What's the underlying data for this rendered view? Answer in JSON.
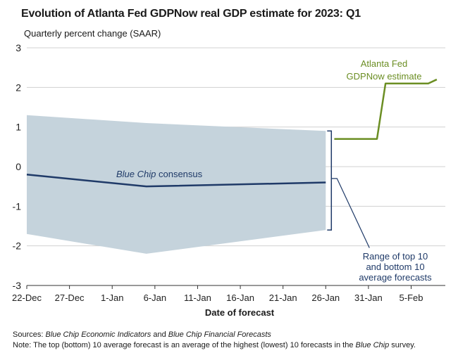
{
  "title": "Evolution of Atlanta Fed GDPNow real GDP estimate for 2023: Q1",
  "subtitle": "Quarterly percent change (SAAR)",
  "footer": {
    "sources_label": "Sources:",
    "sources_pre": " ",
    "sources_src1": "Blue Chip Economic Indicators",
    "sources_mid": " and ",
    "sources_src2": "Blue Chip Financial Forecasts",
    "note_label": "Note",
    "note_pre": ": The top (bottom) 10 average forecast is an average of the highest (lowest) 10 forecasts in the ",
    "note_em": "Blue Chip",
    "note_post": " survey."
  },
  "colors": {
    "gdpnow": "#6b8e23",
    "bluechip": "#1f3a68",
    "range_fill": "#c5d3dc",
    "grid": "#d0d0d0",
    "axis": "#333333"
  },
  "chart_data": {
    "type": "line",
    "xlabel": "Date of forecast",
    "ylabel": "",
    "ylim": [
      -3,
      3
    ],
    "yticks": [
      "3",
      "2",
      "1",
      "0",
      "-1",
      "-2",
      "-3"
    ],
    "xticks": [
      "22-Dec",
      "27-Dec",
      "1-Jan",
      "6-Jan",
      "11-Jan",
      "16-Jan",
      "21-Jan",
      "26-Jan",
      "31-Jan",
      "5-Feb"
    ],
    "grid": true,
    "series": [
      {
        "name": "Blue Chip consensus",
        "x": [
          "2022-12-22",
          "2023-01-05",
          "2023-01-26"
        ],
        "values": [
          -0.2,
          -0.5,
          -0.4
        ]
      },
      {
        "name": "Atlanta Fed GDPNow estimate",
        "x": [
          "2023-01-27",
          "2023-02-01",
          "2023-02-02",
          "2023-02-07",
          "2023-02-08"
        ],
        "values": [
          0.7,
          0.7,
          2.1,
          2.1,
          2.2
        ]
      }
    ],
    "range": {
      "name": "Range of top 10 and bottom 10 average forecasts",
      "x": [
        "2022-12-22",
        "2023-01-05",
        "2023-01-26"
      ],
      "upper": [
        1.3,
        1.1,
        0.9
      ],
      "lower": [
        -1.7,
        -2.2,
        -1.6
      ]
    },
    "annotations": {
      "bluechip": [
        "Blue Chip",
        " consensus"
      ],
      "gdpnow": [
        "Atlanta Fed",
        "GDPNow estimate"
      ],
      "range": [
        "Range of top 10",
        "and bottom 10",
        "average forecasts"
      ]
    }
  }
}
